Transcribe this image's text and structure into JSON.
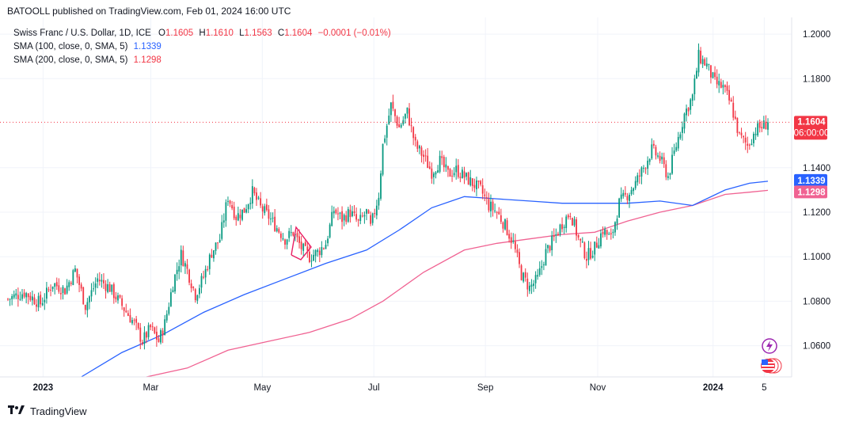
{
  "header": {
    "publisher_text": "BATOOLL published on TradingView.com, Feb 01, 2024 16:00 UTC"
  },
  "legend": {
    "symbol": "Swiss Franc / U.S. Dollar, 1D, ICE",
    "o_label": "O",
    "o_value": "1.1605",
    "h_label": "H",
    "h_value": "1.1610",
    "l_label": "L",
    "l_value": "1.1563",
    "c_label": "C",
    "c_value": "1.1604",
    "change": "−0.0001 (−0.01%)",
    "sma100_label": "SMA (100, close, 0, SMA, 5)",
    "sma100_value": "1.1339",
    "sma200_label": "SMA (200, close, 0, SMA, 5)",
    "sma200_value": "1.1298"
  },
  "price_tags": {
    "last_price": "1.1604",
    "countdown": "06:00:00",
    "sma100": "1.1339",
    "sma200": "1.1298"
  },
  "footer": {
    "brand": "TradingView"
  },
  "colors": {
    "up": "#089981",
    "down": "#f23645",
    "sma100": "#2962ff",
    "sma200": "#f06292",
    "last": "#f23645"
  },
  "icons": [
    "lightning-icon",
    "us-flag-icon",
    "tradingview-logo-icon"
  ],
  "chart_data": {
    "type": "candlestick",
    "yaxis": {
      "min": 1.046,
      "max": 1.2075,
      "ticks": [
        "1.2000",
        "1.1800",
        "1.1400",
        "1.1200",
        "1.1000",
        "1.0800",
        "1.0600"
      ]
    },
    "xaxis": {
      "ticks": [
        "2023",
        "Mar",
        "May",
        "Jul",
        "Sep",
        "Nov",
        "2024",
        "5"
      ]
    },
    "last_price": 1.1604,
    "close_path": [
      [
        0,
        1.081
      ],
      [
        8,
        1.084
      ],
      [
        16,
        1.079
      ],
      [
        22,
        1.088
      ],
      [
        28,
        1.085
      ],
      [
        33,
        1.094
      ],
      [
        38,
        1.078
      ],
      [
        44,
        1.09
      ],
      [
        50,
        1.086
      ],
      [
        56,
        1.078
      ],
      [
        62,
        1.07
      ],
      [
        66,
        1.062
      ],
      [
        70,
        1.068
      ],
      [
        74,
        1.062
      ],
      [
        77,
        1.07
      ],
      [
        81,
        1.088
      ],
      [
        85,
        1.101
      ],
      [
        88,
        1.094
      ],
      [
        92,
        1.083
      ],
      [
        96,
        1.091
      ],
      [
        100,
        1.102
      ],
      [
        104,
        1.108
      ],
      [
        108,
        1.127
      ],
      [
        112,
        1.118
      ],
      [
        116,
        1.121
      ],
      [
        120,
        1.129
      ],
      [
        124,
        1.122
      ],
      [
        128,
        1.118
      ],
      [
        132,
        1.113
      ],
      [
        136,
        1.108
      ],
      [
        140,
        1.111
      ],
      [
        144,
        1.104
      ],
      [
        148,
        1.1
      ],
      [
        152,
        1.102
      ],
      [
        156,
        1.106
      ],
      [
        160,
        1.121
      ],
      [
        164,
        1.117
      ],
      [
        168,
        1.12
      ],
      [
        172,
        1.115
      ],
      [
        176,
        1.12
      ],
      [
        178,
        1.113
      ],
      [
        182,
        1.128
      ],
      [
        184,
        1.15
      ],
      [
        188,
        1.168
      ],
      [
        192,
        1.158
      ],
      [
        196,
        1.165
      ],
      [
        200,
        1.15
      ],
      [
        204,
        1.145
      ],
      [
        208,
        1.138
      ],
      [
        212,
        1.143
      ],
      [
        216,
        1.137
      ],
      [
        220,
        1.139
      ],
      [
        224,
        1.136
      ],
      [
        228,
        1.133
      ],
      [
        232,
        1.13
      ],
      [
        236,
        1.123
      ],
      [
        240,
        1.12
      ],
      [
        244,
        1.114
      ],
      [
        248,
        1.106
      ],
      [
        252,
        1.092
      ],
      [
        256,
        1.086
      ],
      [
        260,
        1.09
      ],
      [
        264,
        1.102
      ],
      [
        268,
        1.108
      ],
      [
        272,
        1.115
      ],
      [
        276,
        1.12
      ],
      [
        280,
        1.108
      ],
      [
        284,
        1.1
      ],
      [
        288,
        1.104
      ],
      [
        292,
        1.112
      ],
      [
        296,
        1.108
      ],
      [
        300,
        1.124
      ],
      [
        304,
        1.128
      ],
      [
        308,
        1.133
      ],
      [
        312,
        1.14
      ],
      [
        316,
        1.148
      ],
      [
        320,
        1.144
      ],
      [
        324,
        1.136
      ],
      [
        328,
        1.15
      ],
      [
        332,
        1.164
      ],
      [
        336,
        1.172
      ],
      [
        339,
        1.19
      ],
      [
        343,
        1.186
      ],
      [
        347,
        1.178
      ],
      [
        351,
        1.176
      ],
      [
        355,
        1.168
      ],
      [
        359,
        1.154
      ],
      [
        363,
        1.15
      ],
      [
        367,
        1.157
      ],
      [
        371,
        1.159
      ],
      [
        373,
        1.1604
      ]
    ],
    "series": [
      {
        "name": "SMA (100, close, 0, SMA, 5)",
        "value": 1.1339,
        "points": [
          [
            36,
            1.046
          ],
          [
            56,
            1.057
          ],
          [
            76,
            1.065
          ],
          [
            96,
            1.075
          ],
          [
            116,
            1.083
          ],
          [
            136,
            1.09
          ],
          [
            156,
            1.097
          ],
          [
            176,
            1.103
          ],
          [
            192,
            1.112
          ],
          [
            208,
            1.122
          ],
          [
            224,
            1.127
          ],
          [
            240,
            1.126
          ],
          [
            256,
            1.125
          ],
          [
            272,
            1.124
          ],
          [
            292,
            1.124
          ],
          [
            304,
            1.124
          ],
          [
            320,
            1.125
          ],
          [
            336,
            1.123
          ],
          [
            352,
            1.13
          ],
          [
            364,
            1.133
          ],
          [
            373,
            1.1339
          ]
        ]
      },
      {
        "name": "SMA (200, close, 0, SMA, 5)",
        "value": 1.1298,
        "points": [
          [
            68,
            1.046
          ],
          [
            88,
            1.05
          ],
          [
            108,
            1.058
          ],
          [
            128,
            1.062
          ],
          [
            148,
            1.066
          ],
          [
            168,
            1.072
          ],
          [
            184,
            1.08
          ],
          [
            204,
            1.093
          ],
          [
            224,
            1.103
          ],
          [
            240,
            1.106
          ],
          [
            256,
            1.108
          ],
          [
            272,
            1.11
          ],
          [
            288,
            1.111
          ],
          [
            304,
            1.116
          ],
          [
            320,
            1.12
          ],
          [
            336,
            1.123
          ],
          [
            352,
            1.128
          ],
          [
            364,
            1.129
          ],
          [
            373,
            1.1298
          ]
        ]
      }
    ]
  }
}
